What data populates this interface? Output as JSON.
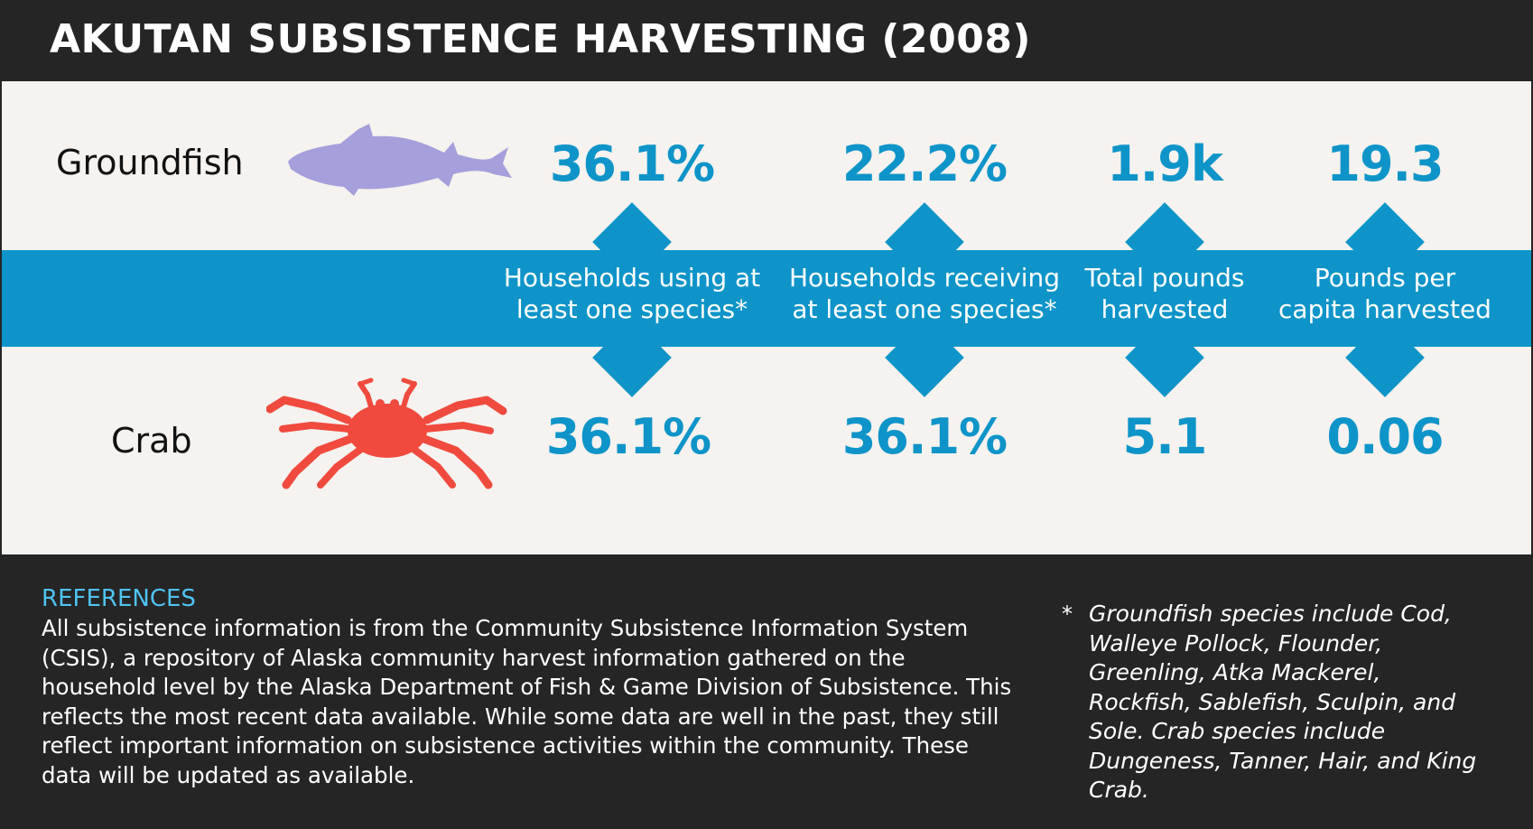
{
  "title": "AKUTAN SUBSISTENCE HARVESTING (2008)",
  "rows": {
    "groundfish": {
      "label": "Groundfish",
      "values": [
        "36.1%",
        "22.2%",
        "1.9k",
        "19.3"
      ]
    },
    "crab": {
      "label": "Crab",
      "values": [
        "36.1%",
        "36.1%",
        "5.1",
        "0.06"
      ]
    }
  },
  "metrics": [
    {
      "line1": "Households using at",
      "line2": "least one species*"
    },
    {
      "line1": "Households receiving",
      "line2": "at least one species*"
    },
    {
      "line1": "Total pounds",
      "line2": "harvested"
    },
    {
      "line1": "Pounds per",
      "line2": "capita harvested"
    }
  ],
  "references": {
    "heading": "REFERENCES",
    "lines": [
      "All subsistence information is from the Community Subsistence Information System",
      "(CSIS), a repository of Alaska community harvest information gathered on the",
      "household level by the Alaska Department of Fish & Game Division of Subsistence. This",
      "reflects the most recent data available. While some data are well in the past, they still",
      "reflect important information on subsistence activities within the community. These",
      "data will be updated as available."
    ]
  },
  "footnote": {
    "marker": "*",
    "lines": [
      "Groundfish species include Cod,",
      "Walleye Pollock, Flounder,",
      "Greenling, Atka Mackerel,",
      "Rockfish, Sablefish, Sculpin, and",
      "Sole. Crab species include",
      "Dungeness, Tanner, Hair, and King",
      "Crab."
    ]
  },
  "colors": {
    "accent": "#0e94c8",
    "fish": "#a59fdb",
    "crab": "#f04a3e",
    "dark": "#252525",
    "panel": "#f5f2ef",
    "reference_heading": "#4fc3f2"
  },
  "icons": {
    "fish": "fish-icon",
    "crab": "crab-icon"
  }
}
